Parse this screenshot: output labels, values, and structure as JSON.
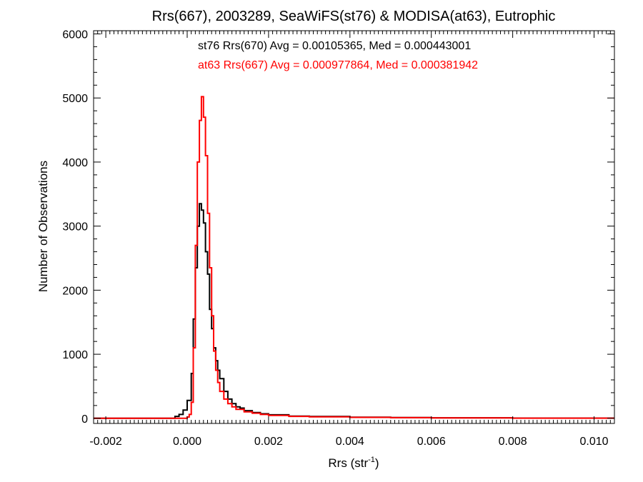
{
  "chart_data": {
    "type": "line",
    "title": "Rrs(667), 2003289, SeaWiFS(st76) & MODISA(at63), Eutrophic",
    "xlabel": "Rrs (str",
    "xlabel_sup": "-1",
    "xlabel_close": ")",
    "ylabel": "Number of Observations",
    "xlim": [
      -0.0023,
      0.0105
    ],
    "ylim": [
      -80,
      6050
    ],
    "xticks": [
      -0.002,
      0.0,
      0.002,
      0.004,
      0.006,
      0.008,
      0.01
    ],
    "xtick_labels": [
      "-0.002",
      "0.000",
      "0.002",
      "0.004",
      "0.006",
      "0.008",
      "0.010"
    ],
    "yticks": [
      0,
      1000,
      2000,
      3000,
      4000,
      5000,
      6000
    ],
    "ytick_labels": [
      "0",
      "1000",
      "2000",
      "3000",
      "4000",
      "5000",
      "6000"
    ],
    "grid": false,
    "series": [
      {
        "name": "st76 Rrs(670) Avg = 0.00105365, Med = 0.000443001",
        "color": "#000000",
        "x": [
          -0.0023,
          -0.0005,
          -0.0003,
          -0.0002,
          -0.0001,
          0.0,
          0.0001,
          0.00015,
          0.0002,
          0.00025,
          0.0003,
          0.00035,
          0.0004,
          0.00045,
          0.0005,
          0.00055,
          0.0006,
          0.00065,
          0.0007,
          0.00075,
          0.0008,
          0.0009,
          0.001,
          0.0011,
          0.0012,
          0.0013,
          0.0014,
          0.0016,
          0.0018,
          0.002,
          0.0025,
          0.003,
          0.004,
          0.005,
          0.006,
          0.008,
          0.0105
        ],
        "y": [
          0,
          0,
          30,
          60,
          130,
          280,
          700,
          1550,
          2350,
          3000,
          3350,
          3250,
          3050,
          2600,
          2250,
          1700,
          1400,
          1100,
          900,
          750,
          620,
          420,
          300,
          230,
          180,
          160,
          120,
          90,
          70,
          55,
          35,
          28,
          18,
          12,
          8,
          4,
          0
        ]
      },
      {
        "name": "at63 Rrs(667) Avg = 0.000977864, Med = 0.000381942",
        "color": "#ff0000",
        "x": [
          -0.0023,
          -0.0001,
          0.0,
          5e-05,
          0.0001,
          0.00015,
          0.0002,
          0.00025,
          0.0003,
          0.00035,
          0.0004,
          0.00045,
          0.0005,
          0.00055,
          0.0006,
          0.00065,
          0.0007,
          0.00075,
          0.0008,
          0.0009,
          0.001,
          0.0011,
          0.0012,
          0.0014,
          0.0016,
          0.0018,
          0.002,
          0.0025,
          0.003,
          0.004,
          0.005,
          0.006,
          0.008,
          0.0105
        ],
        "y": [
          0,
          0,
          20,
          60,
          250,
          1100,
          2700,
          4000,
          4650,
          5020,
          4700,
          4100,
          3200,
          2350,
          1600,
          1050,
          750,
          560,
          420,
          300,
          230,
          180,
          140,
          100,
          80,
          60,
          45,
          30,
          22,
          15,
          10,
          6,
          3,
          0
        ]
      }
    ]
  }
}
